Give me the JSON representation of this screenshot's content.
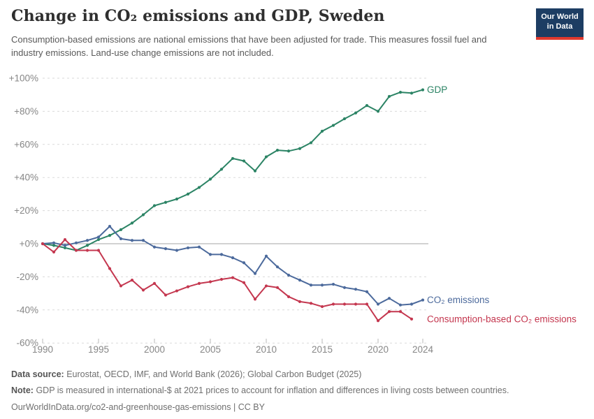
{
  "header": {
    "title": "Change in CO₂ emissions and GDP, Sweden",
    "subtitle": "Consumption-based emissions are national emissions that have been adjusted for trade. This measures fossil fuel and industry emissions. Land-use change emissions are not included.",
    "logo": {
      "line1": "Our World",
      "line2": "in Data",
      "bg_color": "#1d3d63",
      "accent_color": "#e0392e"
    }
  },
  "chart_data": {
    "type": "line",
    "title": "Change in CO₂ emissions and GDP, Sweden",
    "xlabel": "",
    "ylabel": "",
    "ylim": [
      -60,
      100
    ],
    "grid": "horizontal-dashed",
    "zero_line": true,
    "legend_position": "line-end-labels",
    "x": [
      1990,
      1991,
      1992,
      1993,
      1994,
      1995,
      1996,
      1997,
      1998,
      1999,
      2000,
      2001,
      2002,
      2003,
      2004,
      2005,
      2006,
      2007,
      2008,
      2009,
      2010,
      2011,
      2012,
      2013,
      2014,
      2015,
      2016,
      2017,
      2018,
      2019,
      2020,
      2021,
      2022,
      2023,
      2024
    ],
    "yticks": [
      {
        "value": 100,
        "label": "+100%"
      },
      {
        "value": 80,
        "label": "+80%"
      },
      {
        "value": 60,
        "label": "+60%"
      },
      {
        "value": 40,
        "label": "+40%"
      },
      {
        "value": 20,
        "label": "+20%"
      },
      {
        "value": 0,
        "label": "+0%"
      },
      {
        "value": -20,
        "label": "-20%"
      },
      {
        "value": -40,
        "label": "-40%"
      },
      {
        "value": -60,
        "label": "-60%"
      }
    ],
    "xticks": [
      {
        "value": 1990,
        "label": "1990"
      },
      {
        "value": 1995,
        "label": "1995"
      },
      {
        "value": 2000,
        "label": "2000"
      },
      {
        "value": 2005,
        "label": "2005"
      },
      {
        "value": 2010,
        "label": "2010"
      },
      {
        "value": 2015,
        "label": "2015"
      },
      {
        "value": 2020,
        "label": "2020"
      },
      {
        "value": 2024,
        "label": "2024"
      }
    ],
    "series": [
      {
        "key": "gdp",
        "name": "GDP",
        "color": "#2c8465",
        "values": [
          0,
          -1,
          -2.5,
          -4,
          -1,
          2.5,
          5,
          8.5,
          12.5,
          17.5,
          23,
          25,
          27,
          30,
          34,
          39,
          45,
          51.5,
          50,
          44,
          52.5,
          56.5,
          56,
          57.5,
          61,
          68,
          71.5,
          75.5,
          79,
          83.5,
          80,
          89,
          91.5,
          91,
          93
        ]
      },
      {
        "key": "co2-emissions",
        "name": "CO₂ emissions",
        "color": "#4c6a9c",
        "values": [
          0,
          0.5,
          -1,
          0.5,
          2,
          4,
          10.5,
          3,
          2,
          2,
          -2,
          -3,
          -4,
          -2.5,
          -2,
          -6.5,
          -6.5,
          -8.5,
          -11.5,
          -18,
          -7.5,
          -14,
          -19,
          -22,
          -25,
          -25,
          -24.5,
          -26.5,
          -27.5,
          -29,
          -36.5,
          -33,
          -37,
          -36.5,
          -34
        ]
      },
      {
        "key": "consumption-co2",
        "name": "Consumption-based CO₂ emissions",
        "color": "#c4374f",
        "values": [
          0,
          -5,
          2.5,
          -4,
          -4,
          -4,
          -15,
          -25.5,
          -22,
          -28,
          -24,
          -31,
          -28.5,
          -26,
          -24,
          -23,
          -21.5,
          -20.5,
          -23.5,
          -33.5,
          -25.5,
          -26.5,
          -32,
          -35,
          -36,
          -38,
          -36.5,
          -36.5,
          -36.5,
          -36.5,
          -46.5,
          -41,
          -41,
          -45.5
        ]
      }
    ],
    "colors": {
      "grid": "#dadada",
      "zero_line": "#a5a5a5",
      "axis_text": "#878787"
    }
  },
  "footer": {
    "datasource_label": "Data source:",
    "datasource": "Eurostat, OECD, IMF, and World Bank (2026); Global Carbon Budget (2025)",
    "note_label": "Note:",
    "note": "GDP is measured in international-$ at 2021 prices to account for inflation and differences in living costs between countries.",
    "url_line": "OurWorldInData.org/co2-and-greenhouse-gas-emissions | CC BY"
  }
}
